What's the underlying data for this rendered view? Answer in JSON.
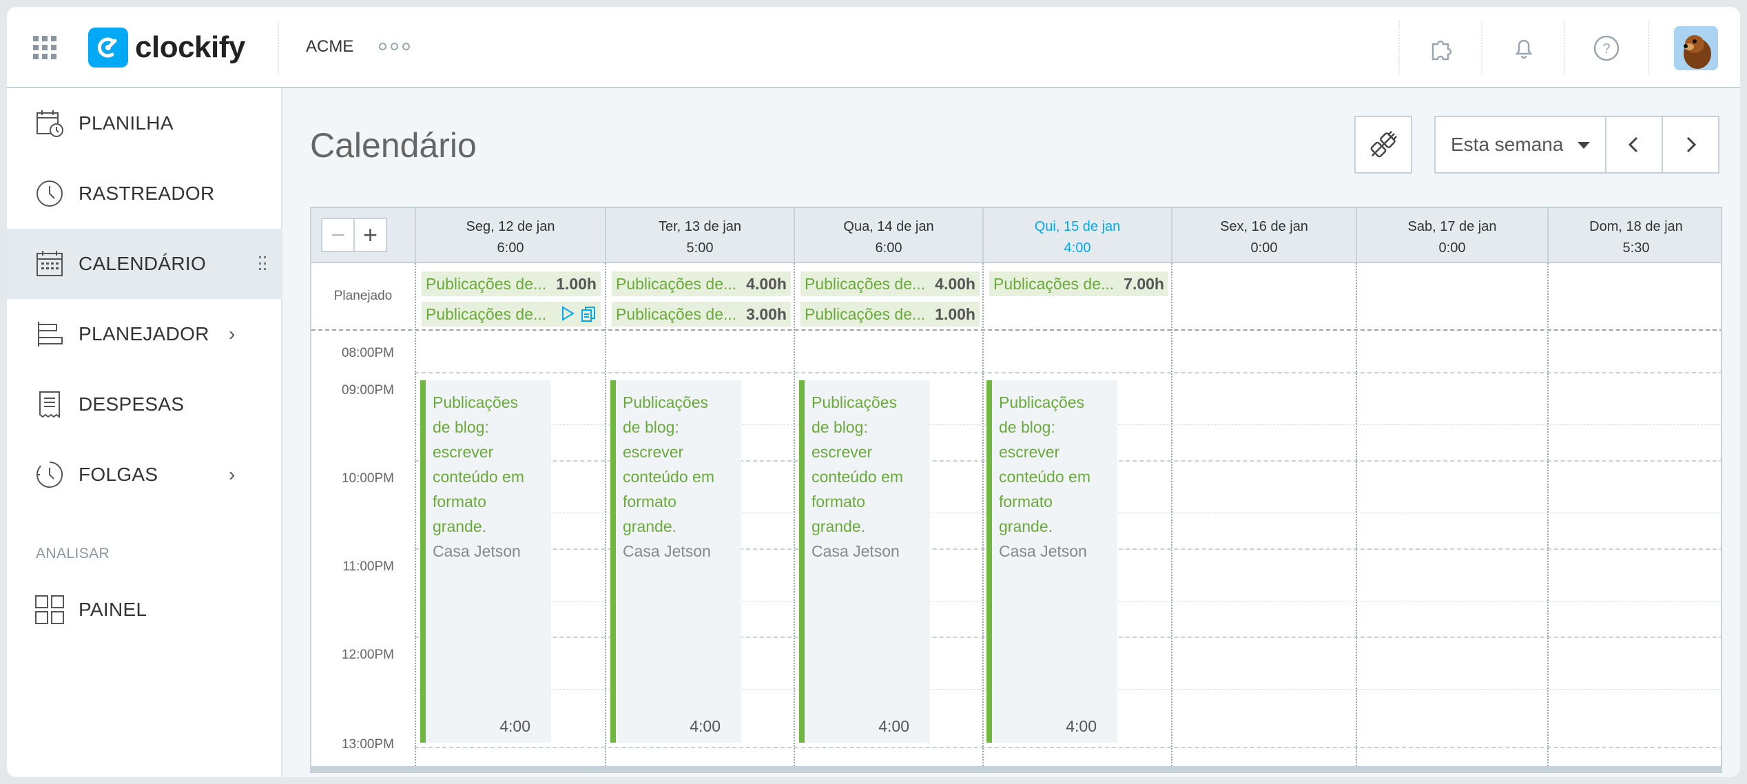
{
  "topbar": {
    "brand": "clockify",
    "workspace": "ACME"
  },
  "sidebar": {
    "items": [
      {
        "label": "PLANILHA",
        "icon": "timesheet-icon"
      },
      {
        "label": "RASTREADOR",
        "icon": "clock-icon"
      },
      {
        "label": "CALENDÁRIO",
        "icon": "calendar-icon",
        "active": true
      },
      {
        "label": "PLANEJADOR",
        "icon": "scheduler-icon"
      },
      {
        "label": "DESPESAS",
        "icon": "receipt-icon"
      },
      {
        "label": "FOLGAS",
        "icon": "time-off-icon"
      }
    ],
    "section": "ANALISAR",
    "dashboard": {
      "label": "PAINEL",
      "icon": "dashboard-icon"
    }
  },
  "page": {
    "title": "Calendário",
    "range_label": "Esta semana"
  },
  "calendar": {
    "planned_label": "Planejado",
    "days": [
      {
        "name": "Seg, 12 de jan",
        "total": "6:00"
      },
      {
        "name": "Ter, 13 de jan",
        "total": "5:00"
      },
      {
        "name": "Qua, 14 de jan",
        "total": "6:00"
      },
      {
        "name": "Qui, 15 de jan",
        "total": "4:00",
        "today": true
      },
      {
        "name": "Sex, 16 de jan",
        "total": "0:00"
      },
      {
        "name": "Sab, 17 de jan",
        "total": "0:00"
      },
      {
        "name": "Dom, 18 de jan",
        "total": "5:30"
      }
    ],
    "planned": [
      [
        {
          "label": "Publicações de...",
          "hours": "1.00h"
        },
        {
          "label": "Publicações de...",
          "hours": ""
        }
      ],
      [
        {
          "label": "Publicações de...",
          "hours": "4.00h"
        },
        {
          "label": "Publicações de...",
          "hours": "3.00h"
        }
      ],
      [
        {
          "label": "Publicações de...",
          "hours": "4.00h"
        },
        {
          "label": "Publicações de...",
          "hours": "1.00h"
        }
      ],
      [
        {
          "label": "Publicações de...",
          "hours": "7.00h"
        }
      ]
    ],
    "hours": [
      "08:00PM",
      "09:00PM",
      "10:00PM",
      "11:00PM",
      "12:00PM",
      "13:00PM"
    ],
    "entries": [
      {
        "description": [
          "Publicações",
          "de blog:",
          "escrever",
          "conteúdo em",
          "formato",
          "grande."
        ],
        "project": "Casa Jetson",
        "duration": "4:00"
      },
      {
        "description": [
          "Publicações",
          "de blog:",
          "escrever",
          "conteúdo em",
          "formato",
          "grande."
        ],
        "project": "Casa Jetson",
        "duration": "4:00"
      },
      {
        "description": [
          "Publicações",
          "de blog:",
          "escrever",
          "conteúdo em",
          "formato",
          "grande."
        ],
        "project": "Casa Jetson",
        "duration": "4:00"
      },
      {
        "description": [
          "Publicações",
          "de blog:",
          "escrever",
          "conteúdo em",
          "formato",
          "grande."
        ],
        "project": "Casa Jetson",
        "duration": "4:00"
      }
    ]
  },
  "colors": {
    "accent": "#03a9f4",
    "entry_green": "#6fb73f",
    "planned_bg": "#e6f0dc"
  }
}
